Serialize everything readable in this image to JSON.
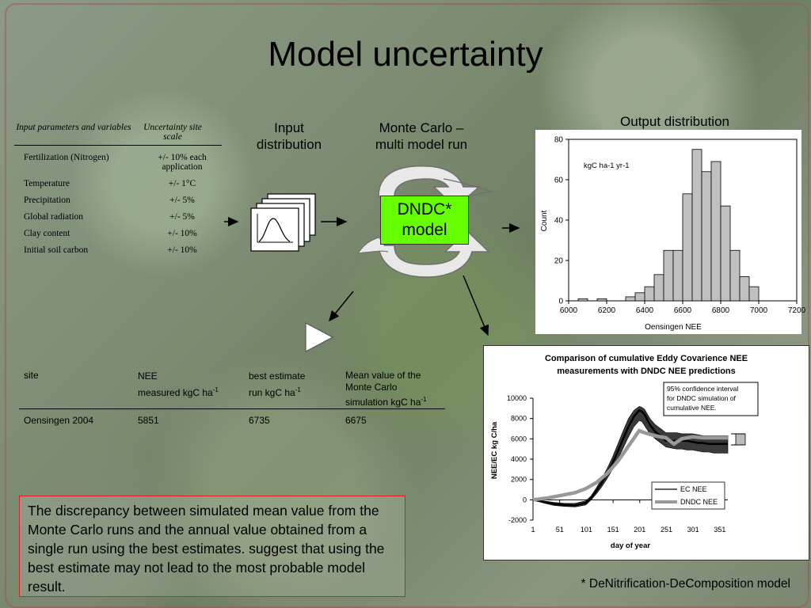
{
  "slide": {
    "title": "Model uncertainty",
    "input_distribution_label_line1": "Input",
    "input_distribution_label_line2": "distribution",
    "monte_carlo_label_line1": "Monte Carlo –",
    "monte_carlo_label_line2": "multi model run",
    "output_distribution_label": "Output distribution",
    "model_box_line1": "DNDC*",
    "model_box_line2": "model",
    "footnote": "* DeNitrification-DeComposition model",
    "note_text": "The discrepancy between simulated mean value from the Monte Carlo runs and the annual value obtained from a single run using the best estimates. suggest that using the best estimate may not lead to the most probable model result."
  },
  "parameter_table": {
    "headers": [
      "Input parameters and variables",
      "Uncertainty site scale"
    ],
    "rows": [
      [
        "Fertilization (Nitrogen)",
        "+/- 10% each application"
      ],
      [
        "Temperature",
        "+/- 1°C"
      ],
      [
        "Precipitation",
        "+/- 5%"
      ],
      [
        "Global radiation",
        "+/- 5%"
      ],
      [
        "Clay content",
        "+/- 10%"
      ],
      [
        "Initial soil carbon",
        "+/- 10%"
      ]
    ]
  },
  "site_table": {
    "header_site": "site",
    "header_nee": "NEE",
    "header_nee_unit": "measured kgC ha",
    "header_best": "best estimate",
    "header_best_unit": "run kgC ha",
    "header_mean": "Mean value of the Monte Carlo",
    "header_mean_unit": "simulation kgC ha",
    "sup": "-1",
    "row": [
      "Oensingen 2004",
      "5851",
      "6735",
      "6675"
    ]
  },
  "chart_data": [
    {
      "type": "bar",
      "title": "",
      "annotation": "kgC ha-1 yr-1",
      "xlabel": "Oensingen NEE",
      "ylabel": "Count",
      "xlim": [
        6000,
        7200
      ],
      "ylim": [
        0,
        80
      ],
      "xticks": [
        6000,
        6200,
        6400,
        6600,
        6800,
        7000,
        7200
      ],
      "xtick_labels": [
        "6000",
        "6200",
        "6400",
        "6600",
        "6800",
        "7000",
        "7200"
      ],
      "yticks": [
        0,
        20,
        40,
        60,
        80
      ],
      "ytick_labels": [
        "0",
        "20",
        "40",
        "60",
        "80"
      ],
      "bin_width": 50,
      "bin_starts": [
        6050,
        6150,
        6300,
        6350,
        6400,
        6450,
        6500,
        6550,
        6600,
        6650,
        6700,
        6750,
        6800,
        6850,
        6900,
        6950
      ],
      "counts": [
        1,
        1,
        2,
        4,
        7,
        13,
        25,
        25,
        53,
        75,
        64,
        69,
        47,
        25,
        12,
        7
      ],
      "grid": false
    },
    {
      "type": "line",
      "title_line1": "Comparison of cumulative Eddy Covarience NEE",
      "title_line2": "measurements with DNDC NEE predictions",
      "xlabel": "day of year",
      "ylabel": "NEE/EC kg C/ha",
      "xlim": [
        1,
        366
      ],
      "ylim": [
        -2000,
        10000
      ],
      "xticks": [
        1,
        51,
        101,
        151,
        201,
        251,
        301,
        351
      ],
      "xtick_labels": [
        "1",
        "51",
        "101",
        "151",
        "201",
        "251",
        "301",
        "351"
      ],
      "yticks": [
        -2000,
        0,
        2000,
        4000,
        6000,
        8000,
        10000
      ],
      "ytick_labels": [
        "-2000",
        "0",
        "2000",
        "4000",
        "6000",
        "8000",
        "10000"
      ],
      "annotation_line1": "95% confidence interval",
      "annotation_line2": "for DNDC simulation of",
      "annotation_line3": "cumulative NEE.",
      "legend_position": "bottom-right",
      "series": [
        {
          "name": "EC NEE",
          "color": "#000000",
          "x": [
            1,
            20,
            40,
            60,
            80,
            100,
            110,
            120,
            130,
            140,
            150,
            160,
            170,
            180,
            190,
            200,
            205,
            210,
            220,
            230,
            240,
            250,
            260,
            270,
            280,
            290,
            300,
            310,
            320,
            330,
            340,
            350,
            366
          ],
          "y": [
            0,
            -200,
            -400,
            -500,
            -550,
            -300,
            200,
            900,
            1700,
            2600,
            3600,
            4800,
            6000,
            7200,
            8200,
            8800,
            8700,
            8400,
            7400,
            6700,
            6300,
            5800,
            5800,
            5800,
            5800,
            5800,
            5700,
            5600,
            5600,
            5500,
            5500,
            5500,
            5500
          ],
          "y_upper": [
            0,
            -100,
            -250,
            -350,
            -350,
            -100,
            400,
            1200,
            2100,
            3100,
            4200,
            5500,
            6800,
            8000,
            8800,
            9200,
            9100,
            8900,
            8000,
            7400,
            7000,
            6600,
            6600,
            6600,
            6500,
            6500,
            6500,
            6400,
            6300,
            6300,
            6300,
            6300,
            6300
          ],
          "y_lower": [
            0,
            -300,
            -550,
            -650,
            -700,
            -500,
            0,
            600,
            1300,
            2100,
            3000,
            4000,
            5100,
            6200,
            7200,
            7800,
            7700,
            7300,
            6500,
            6000,
            5600,
            5200,
            5100,
            5000,
            5000,
            4900,
            4900,
            4800,
            4700,
            4700,
            4600,
            4600,
            4600
          ]
        },
        {
          "name": "DNDC NEE",
          "color": "#999999",
          "x": [
            1,
            30,
            60,
            80,
            100,
            120,
            140,
            160,
            180,
            200,
            210,
            230,
            250,
            265,
            280,
            300,
            320,
            340,
            366
          ],
          "y": [
            0,
            200,
            500,
            700,
            1100,
            1700,
            2600,
            3800,
            5300,
            6800,
            6600,
            6300,
            6100,
            5500,
            6000,
            6200,
            6100,
            6100,
            6100
          ]
        }
      ]
    }
  ]
}
